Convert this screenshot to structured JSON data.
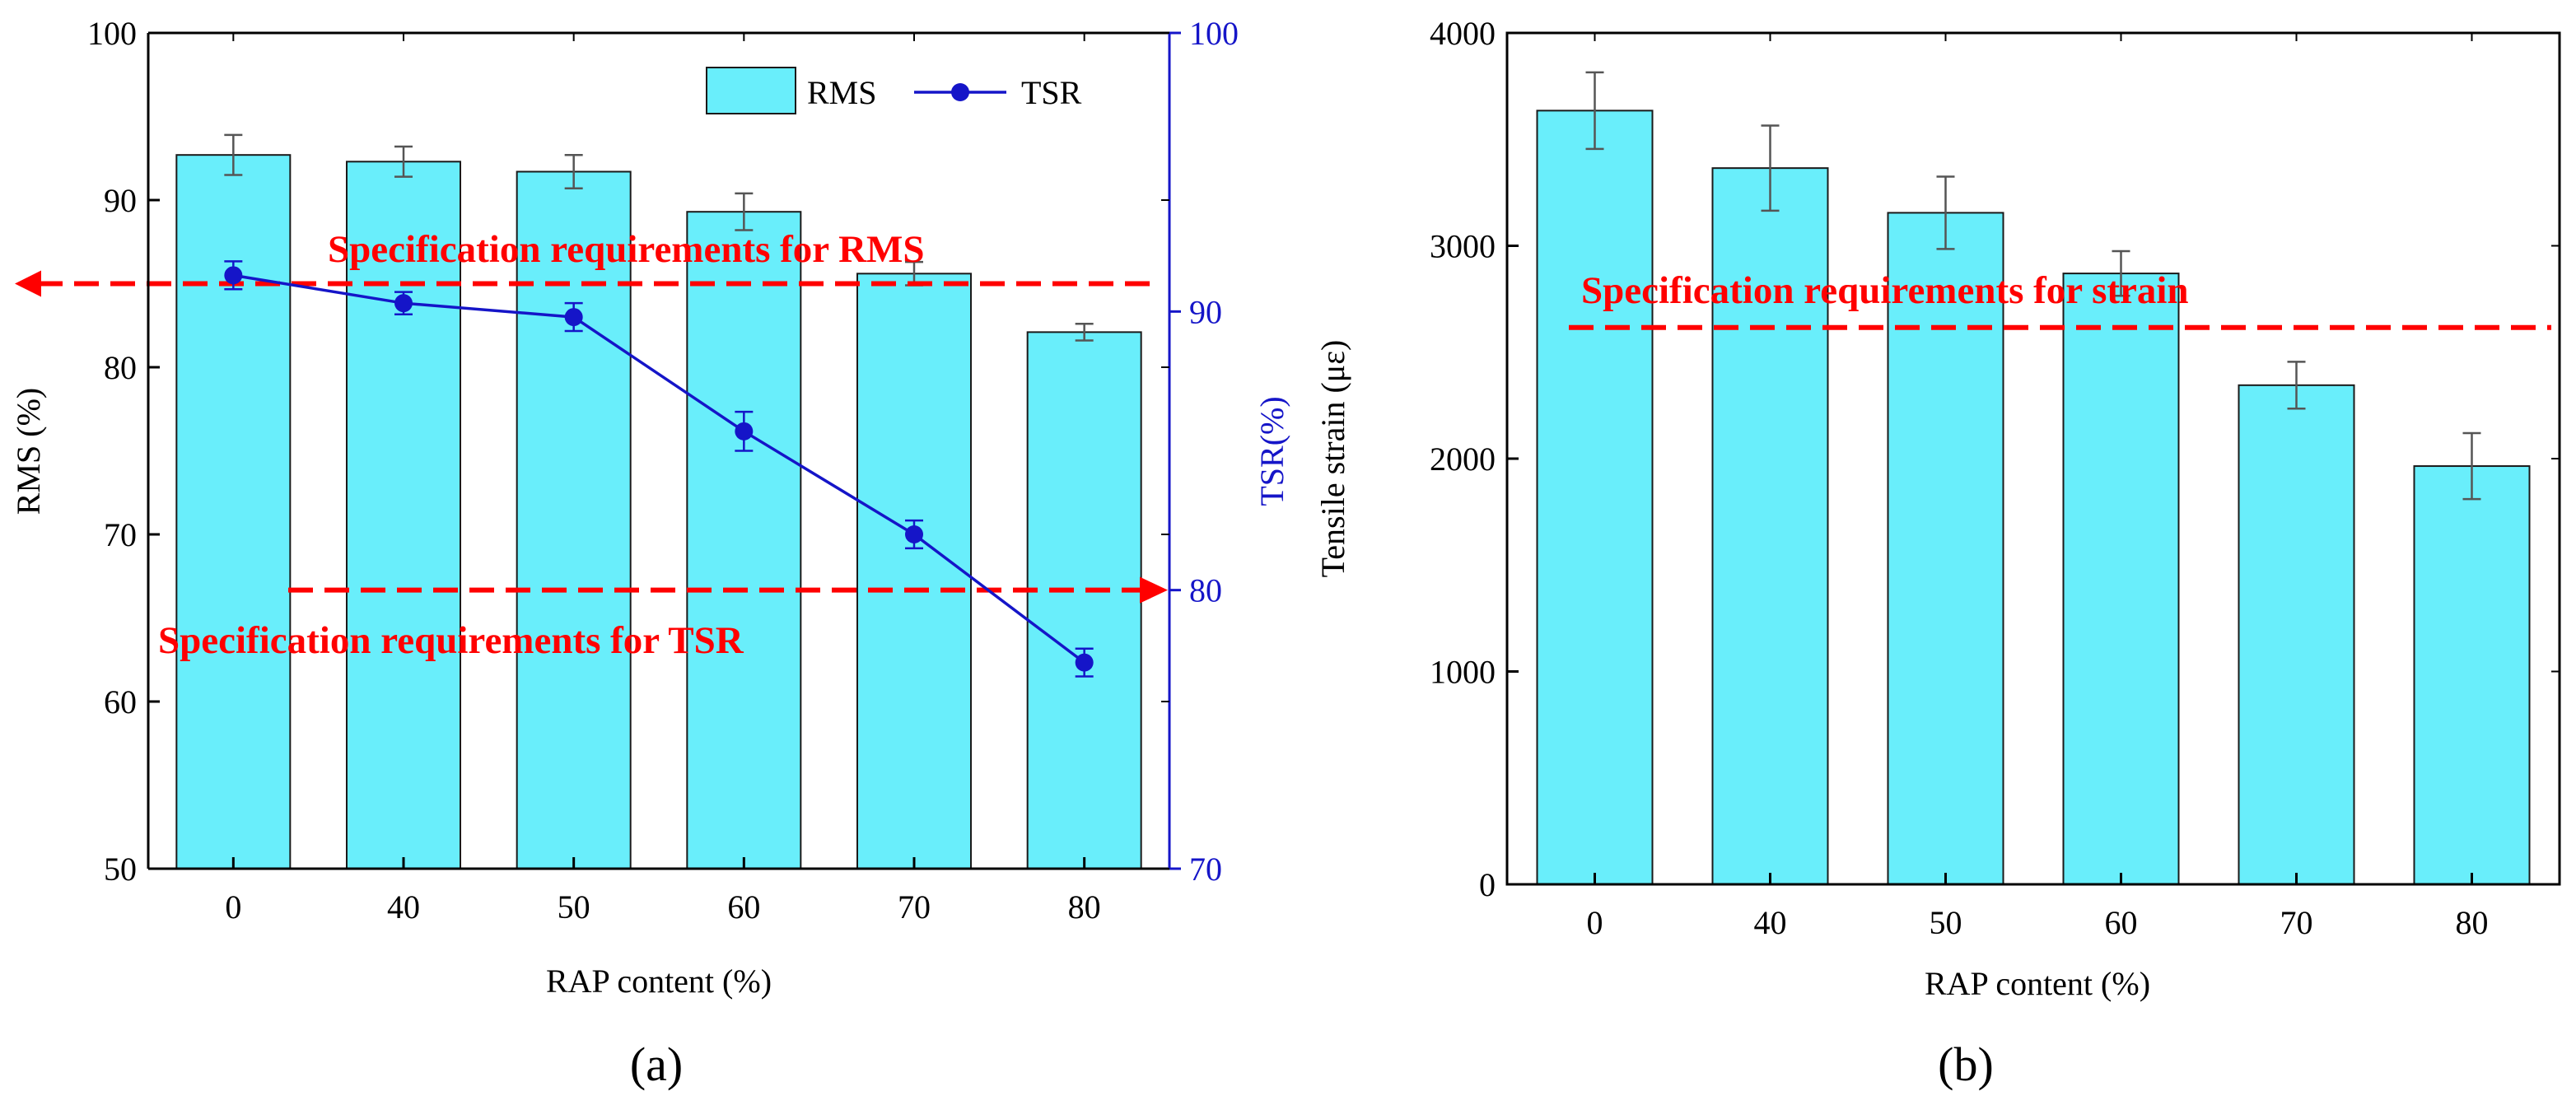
{
  "chart_data": [
    {
      "type": "bar",
      "panel_label": "(a)",
      "categories": [
        "0",
        "40",
        "50",
        "60",
        "70",
        "80"
      ],
      "xlabel": "RAP content (%)",
      "series": [
        {
          "name": "RMS",
          "axis": "left",
          "type": "bar",
          "values": [
            92.7,
            92.3,
            91.7,
            89.3,
            85.6,
            82.1
          ],
          "errors": [
            1.2,
            0.9,
            1.0,
            1.1,
            0.7,
            0.5
          ]
        },
        {
          "name": "TSR",
          "axis": "right",
          "type": "line",
          "values": [
            91.3,
            90.3,
            89.8,
            85.7,
            82.0,
            77.4
          ],
          "errors": [
            0.5,
            0.4,
            0.5,
            0.7,
            0.5,
            0.5
          ]
        }
      ],
      "y_left": {
        "label": "RMS (%)",
        "range": [
          50,
          100
        ],
        "ticks": [
          "50",
          "60",
          "70",
          "80",
          "90",
          "100"
        ]
      },
      "y_right": {
        "label": "TSR(%)",
        "range": [
          70,
          100
        ],
        "ticks": [
          "70",
          "80",
          "90",
          "100"
        ]
      },
      "legend": {
        "placement": "top-right",
        "items": [
          "RMS",
          "TSR"
        ]
      },
      "annotations": [
        {
          "text": "Specification requirements  for RMS",
          "axis": "left",
          "value": 85,
          "arrow": "left"
        },
        {
          "text": "Specification requirements  for TSR",
          "axis": "right",
          "value": 80,
          "arrow": "right"
        }
      ]
    },
    {
      "type": "bar",
      "panel_label": "(b)",
      "categories": [
        "0",
        "40",
        "50",
        "60",
        "70",
        "80"
      ],
      "xlabel": "RAP content (%)",
      "ylabel": "Tensile strain (με)",
      "ylim": [
        0,
        4000
      ],
      "yticks": [
        "0",
        "1000",
        "2000",
        "3000",
        "4000"
      ],
      "series": [
        {
          "name": "Tensile strain",
          "values": [
            3635,
            3365,
            3155,
            2870,
            2345,
            1965
          ],
          "errors": [
            180,
            200,
            170,
            105,
            110,
            155
          ]
        }
      ],
      "annotations": [
        {
          "text": "Specification requirements  for strain",
          "value": 2500
        }
      ]
    }
  ],
  "colors": {
    "bar_fill": "#69eefb",
    "bar_stroke": "#1a1a1a",
    "tsr_line": "#1515c8",
    "annotation": "#ff0000",
    "axis": "#000000"
  }
}
